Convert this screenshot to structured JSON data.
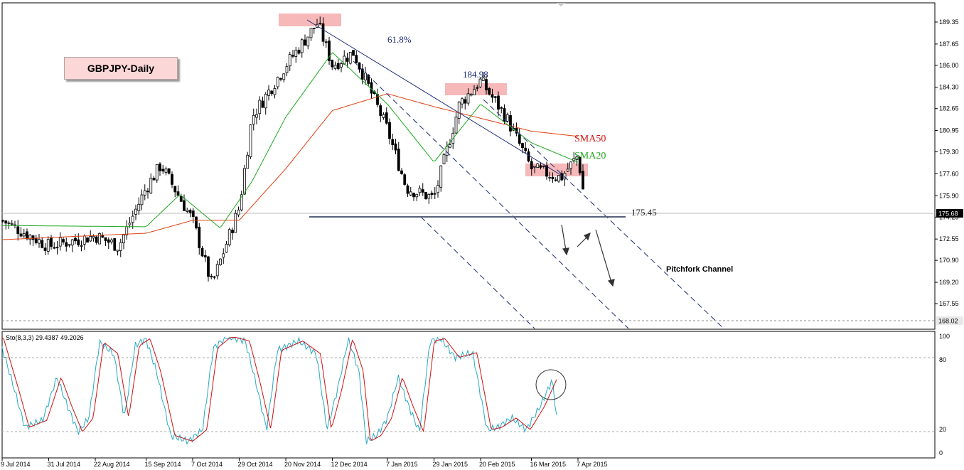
{
  "title_box": "GBPJPY-Daily",
  "annotations": {
    "fib": "61.8%",
    "peak2": "184.98",
    "support": "175.45",
    "sma50": "SMA50",
    "sma20": "SMA20",
    "channel": "Pitchfork Channel"
  },
  "price_axis": {
    "ticks": [
      "189.35",
      "187.65",
      "186.00",
      "184.30",
      "182.65",
      "180.95",
      "179.30",
      "177.60",
      "175.90",
      "174.25",
      "172.55",
      "170.90",
      "169.20",
      "167.55"
    ],
    "current_price": "175.68",
    "low_price": "168.02"
  },
  "stoch": {
    "label": "Sto(8,3,3) 29.4387 49.2026",
    "ticks": [
      "100",
      "80",
      "20",
      "0"
    ]
  },
  "x_axis": {
    "ticks": [
      "9 Jul 2014",
      "31 Jul 2014",
      "22 Aug 2014",
      "15 Sep 2014",
      "7 Oct 2014",
      "29 Oct 2014",
      "20 Nov 2014",
      "12 Dec 2014",
      "7 Jan 2015",
      "29 Jan 2015",
      "20 Feb 2015",
      "16 Mar 2015",
      "7 Apr 2015"
    ]
  },
  "colors": {
    "candle": "#000000",
    "sma20": "#1ea81e",
    "sma50": "#e04010",
    "trend": "#1c2a78",
    "highlight": "#f6b8b8",
    "stoch_main": "#28a8c0",
    "stoch_signal": "#d01010"
  },
  "chart_data": {
    "type": "candlestick",
    "symbol": "GBPJPY",
    "timeframe": "Daily",
    "x_range": [
      "9 Jul 2014",
      "10 Apr 2015"
    ],
    "y_range": [
      167.55,
      189.35
    ],
    "key_levels": {
      "support": 175.45,
      "fib_label": "61.8%",
      "swing_high_2": 184.98,
      "current": 175.68,
      "low": 168.02
    },
    "close_path": [
      {
        "date": "9 Jul 2014",
        "close": 174.0
      },
      {
        "date": "31 Jul 2014",
        "close": 172.0
      },
      {
        "date": "22 Aug 2014",
        "close": 172.8
      },
      {
        "date": "2 Sep 2014",
        "close": 172.0
      },
      {
        "date": "15 Sep 2014",
        "close": 176.5
      },
      {
        "date": "22 Sep 2014",
        "close": 178.3
      },
      {
        "date": "7 Oct 2014",
        "close": 174.0
      },
      {
        "date": "16 Oct 2014",
        "close": 169.0
      },
      {
        "date": "29 Oct 2014",
        "close": 175.0
      },
      {
        "date": "4 Nov 2014",
        "close": 182.0
      },
      {
        "date": "20 Nov 2014",
        "close": 186.0
      },
      {
        "date": "5 Dec 2014",
        "close": 189.3
      },
      {
        "date": "12 Dec 2014",
        "close": 186.0
      },
      {
        "date": "22 Dec 2014",
        "close": 187.0
      },
      {
        "date": "7 Jan 2015",
        "close": 181.0
      },
      {
        "date": "16 Jan 2015",
        "close": 176.5
      },
      {
        "date": "29 Jan 2015",
        "close": 175.7
      },
      {
        "date": "10 Feb 2015",
        "close": 183.0
      },
      {
        "date": "20 Feb 2015",
        "close": 184.8
      },
      {
        "date": "4 Mar 2015",
        "close": 182.0
      },
      {
        "date": "16 Mar 2015",
        "close": 178.0
      },
      {
        "date": "30 Mar 2015",
        "close": 177.3
      },
      {
        "date": "7 Apr 2015",
        "close": 179.0
      },
      {
        "date": "10 Apr 2015",
        "close": 175.68
      }
    ],
    "sma20": [
      {
        "date": "9 Jul 2014",
        "value": 173.6
      },
      {
        "date": "15 Sep 2014",
        "value": 173.5
      },
      {
        "date": "1 Oct 2014",
        "value": 176.0
      },
      {
        "date": "20 Oct 2014",
        "value": 173.4
      },
      {
        "date": "4 Nov 2014",
        "value": 177.0
      },
      {
        "date": "20 Nov 2014",
        "value": 182.0
      },
      {
        "date": "12 Dec 2014",
        "value": 187.0
      },
      {
        "date": "7 Jan 2015",
        "value": 183.0
      },
      {
        "date": "29 Jan 2015",
        "value": 178.5
      },
      {
        "date": "20 Feb 2015",
        "value": 183.0
      },
      {
        "date": "16 Mar 2015",
        "value": 180.0
      },
      {
        "date": "7 Apr 2015",
        "value": 178.5
      }
    ],
    "sma50": [
      {
        "date": "9 Jul 2014",
        "value": 172.5
      },
      {
        "date": "15 Sep 2014",
        "value": 173.0
      },
      {
        "date": "7 Oct 2014",
        "value": 174.0
      },
      {
        "date": "29 Oct 2014",
        "value": 174.0
      },
      {
        "date": "20 Nov 2014",
        "value": 178.0
      },
      {
        "date": "12 Dec 2014",
        "value": 182.5
      },
      {
        "date": "7 Jan 2015",
        "value": 183.8
      },
      {
        "date": "29 Jan 2015",
        "value": 182.8
      },
      {
        "date": "20 Feb 2015",
        "value": 181.9
      },
      {
        "date": "16 Mar 2015",
        "value": 180.9
      },
      {
        "date": "7 Apr 2015",
        "value": 180.5
      }
    ],
    "stochastic": {
      "params": "8,3,3",
      "main_last": 29.4387,
      "signal_last": 49.2026,
      "levels": [
        80,
        20
      ],
      "y_range": [
        0,
        100
      ]
    }
  }
}
